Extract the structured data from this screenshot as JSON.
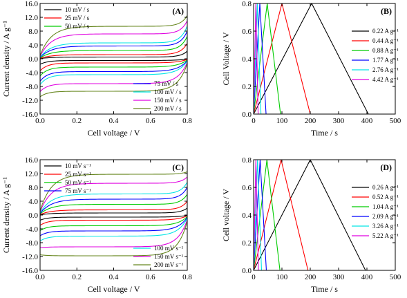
{
  "chart_data": [
    {
      "type": "line",
      "panel_label": "(A)",
      "xlabel": "Cell voltage / V",
      "ylabel": "Current density / A g⁻¹",
      "xlim": [
        0,
        0.8
      ],
      "ylim": [
        -16,
        16
      ],
      "xticks": [
        0.0,
        0.2,
        0.4,
        0.6,
        0.8
      ],
      "xtick_labels": [
        "0.0",
        "0.2",
        "0.4",
        "0.6",
        "0.8"
      ],
      "yticks": [
        -16,
        -12,
        -8,
        -4,
        0,
        4,
        8,
        12,
        16
      ],
      "ytick_labels": [
        "-16.0",
        "-12.0",
        "-8.0",
        "-4.0",
        "0.0",
        "4.0",
        "8.0",
        "12.0",
        "16.0"
      ],
      "legend_groups": [
        {
          "position": "top-left",
          "series_idx": [
            0,
            1,
            2
          ]
        },
        {
          "position": "bottom-right",
          "series_idx": [
            3,
            4,
            5,
            6
          ]
        }
      ],
      "series": [
        {
          "name": "10 mV / s",
          "color": "#000000",
          "plateau": 0.5,
          "end_up": 2.2,
          "end_down": -1.6
        },
        {
          "name": "25 mV / s",
          "color": "#ff0000",
          "plateau": 1.2,
          "end_up": 4.5,
          "end_down": -3.5
        },
        {
          "name": "50 mV / s",
          "color": "#00cc00",
          "plateau": 2.4,
          "end_up": 6.5,
          "end_down": -5.0
        },
        {
          "name": "75 mV / s",
          "color": "#0000ff",
          "plateau": 3.7,
          "end_up": 8.0,
          "end_down": -6.5
        },
        {
          "name": "100 mV / s",
          "color": "#00e5e5",
          "plateau": 4.6,
          "end_up": 9.5,
          "end_down": -7.5
        },
        {
          "name": "150 mV / s",
          "color": "#e000e0",
          "plateau": 7.2,
          "end_up": 11.0,
          "end_down": -9.5
        },
        {
          "name": "200 mV / s",
          "color": "#66861e",
          "plateau": 9.4,
          "end_up": 12.5,
          "end_down": -11.0
        }
      ]
    },
    {
      "type": "line",
      "panel_label": "(B)",
      "xlabel": "Time / s",
      "ylabel": "Cell Voltage / V",
      "xlim": [
        0,
        500
      ],
      "ylim": [
        0,
        0.8
      ],
      "xticks": [
        0,
        100,
        200,
        300,
        400,
        500
      ],
      "xtick_labels": [
        "0",
        "100",
        "200",
        "300",
        "400",
        "500"
      ],
      "yticks": [
        0,
        0.2,
        0.4,
        0.6,
        0.8
      ],
      "ytick_labels": [
        "0.0",
        "0.2",
        "0.4",
        "0.6",
        "0.8"
      ],
      "legend_groups": [
        {
          "position": "right",
          "series_idx": [
            0,
            1,
            2,
            3,
            4,
            5
          ]
        }
      ],
      "series": [
        {
          "name": "0.22 A g⁻¹",
          "color": "#000000",
          "x": [
            0,
            205,
            405
          ],
          "y": [
            0,
            0.8,
            0
          ]
        },
        {
          "name": "0.44 A g⁻¹",
          "color": "#ff0000",
          "x": [
            0,
            100,
            200
          ],
          "y": [
            0,
            0.8,
            0
          ]
        },
        {
          "name": "0.88 A g⁻¹",
          "color": "#00cc00",
          "x": [
            0,
            48,
            95
          ],
          "y": [
            0,
            0.8,
            0
          ]
        },
        {
          "name": "1.77 A g⁻¹",
          "color": "#0000ff",
          "x": [
            0,
            22,
            44
          ],
          "y": [
            0,
            0.8,
            0
          ]
        },
        {
          "name": "2.76 A g⁻¹",
          "color": "#00e5e5",
          "x": [
            0,
            13,
            26
          ],
          "y": [
            0,
            0.8,
            0
          ]
        },
        {
          "name": "4.42 A g⁻¹",
          "color": "#e000e0",
          "x": [
            0,
            8,
            16
          ],
          "y": [
            0,
            0.8,
            0
          ]
        }
      ]
    },
    {
      "type": "line",
      "panel_label": "(C)",
      "xlabel": "Cell voltage / V",
      "ylabel": "Current density / A g⁻¹",
      "xlim": [
        0,
        0.8
      ],
      "ylim": [
        -16,
        16
      ],
      "xticks": [
        0.0,
        0.2,
        0.4,
        0.6,
        0.8
      ],
      "xtick_labels": [
        "0.0",
        "0.2",
        "0.4",
        "0.6",
        "0.8"
      ],
      "yticks": [
        -16,
        -12,
        -8,
        -4,
        0,
        4,
        8,
        12,
        16
      ],
      "ytick_labels": [
        "-16.0",
        "-12.0",
        "-8.0",
        "-4.0",
        "0.0",
        "4.0",
        "8.0",
        "12.0",
        "16.0"
      ],
      "legend_groups": [
        {
          "position": "top-left",
          "series_idx": [
            0,
            1,
            2,
            3
          ]
        },
        {
          "position": "bottom-right",
          "series_idx": [
            4,
            5,
            6
          ]
        }
      ],
      "series": [
        {
          "name": "10 mV s⁻¹",
          "color": "#000000",
          "plateau": 0.6,
          "end_up": 2.0,
          "end_down": -1.5
        },
        {
          "name": "25 mV s⁻¹",
          "color": "#ff0000",
          "plateau": 1.5,
          "end_up": 4.0,
          "end_down": -3.0
        },
        {
          "name": "50 mV s⁻¹",
          "color": "#00cc00",
          "plateau": 3.1,
          "end_up": 6.0,
          "end_down": -4.5
        },
        {
          "name": "75 mV s⁻¹",
          "color": "#0000ff",
          "plateau": 4.6,
          "end_up": 8.0,
          "end_down": -6.0
        },
        {
          "name": "100 mV s⁻¹",
          "color": "#00e5e5",
          "plateau": 6.1,
          "end_up": 9.5,
          "end_down": -7.5
        },
        {
          "name": "150 mV s⁻¹",
          "color": "#e000e0",
          "plateau": 9.2,
          "end_up": 11.0,
          "end_down": -9.5
        },
        {
          "name": "200 mV s⁻¹",
          "color": "#66861e",
          "plateau": 11.8,
          "end_up": 12.5,
          "end_down": -11.5
        }
      ]
    },
    {
      "type": "line",
      "panel_label": "(D)",
      "xlabel": "Time / s",
      "ylabel": "Cell voltage / V",
      "xlim": [
        0,
        500
      ],
      "ylim": [
        0,
        0.8
      ],
      "xticks": [
        0,
        100,
        200,
        300,
        400,
        500
      ],
      "xtick_labels": [
        "0",
        "100",
        "200",
        "300",
        "400",
        "500"
      ],
      "yticks": [
        0,
        0.2,
        0.4,
        0.6,
        0.8
      ],
      "ytick_labels": [
        "0.0",
        "0.2",
        "0.4",
        "0.6",
        "0.8"
      ],
      "legend_groups": [
        {
          "position": "right",
          "series_idx": [
            0,
            1,
            2,
            3,
            4,
            5
          ]
        }
      ],
      "series": [
        {
          "name": "0.26 A g⁻¹",
          "color": "#000000",
          "x": [
            0,
            200,
            395
          ],
          "y": [
            0,
            0.8,
            0
          ]
        },
        {
          "name": "0.52 A g⁻¹",
          "color": "#ff0000",
          "x": [
            0,
            97,
            192
          ],
          "y": [
            0,
            0.8,
            0
          ]
        },
        {
          "name": "1.04 A g⁻¹",
          "color": "#00cc00",
          "x": [
            0,
            47,
            93
          ],
          "y": [
            0,
            0.8,
            0
          ]
        },
        {
          "name": "2.09 A g⁻¹",
          "color": "#0000ff",
          "x": [
            0,
            23,
            45
          ],
          "y": [
            0,
            0.8,
            0
          ]
        },
        {
          "name": "3.26 A g⁻¹",
          "color": "#00e5e5",
          "x": [
            0,
            14,
            28
          ],
          "y": [
            0,
            0.8,
            0
          ]
        },
        {
          "name": "5.22 A g⁻¹",
          "color": "#e000e0",
          "x": [
            0,
            8,
            17
          ],
          "y": [
            0,
            0.8,
            0
          ]
        }
      ]
    }
  ]
}
